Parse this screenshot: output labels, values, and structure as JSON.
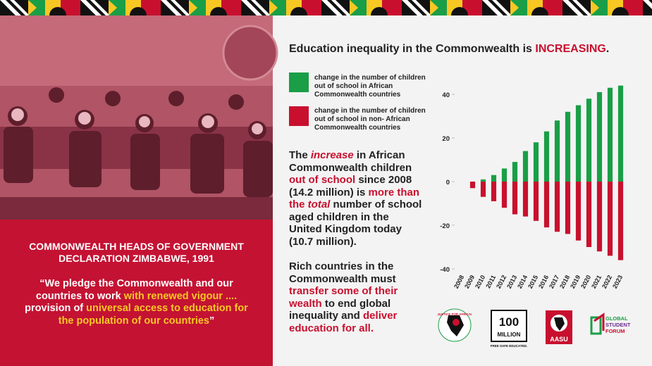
{
  "left_panel": {
    "heading": [
      "COMMONWEALTH HEADS OF GOVERNMENT",
      "DECLARATION ZIMBABWE, 1991"
    ],
    "quote": [
      {
        "text": "“We pledge the Commonwealth and our countries to work ",
        "color": "#ffffff"
      },
      {
        "text": "with renewed vigour ....",
        "color": "#f7c823"
      },
      {
        "text": " provision of ",
        "color": "#ffffff"
      },
      {
        "text": "universal access to education for the population of our countries",
        "color": "#f7c823"
      },
      {
        "text": "”",
        "color": "#ffffff"
      }
    ]
  },
  "headline": [
    {
      "text": "Education inequality in the Commonwealth is ",
      "color": "#222222"
    },
    {
      "text": "INCREASING",
      "color": "#c8102e"
    },
    {
      "text": ".",
      "color": "#222222"
    }
  ],
  "body": [
    [
      {
        "text": "The ",
        "color": "#222222"
      },
      {
        "text": "increase",
        "color": "#c8102e",
        "italic": true
      },
      {
        "text": " in African Commonwealth children ",
        "color": "#222222"
      },
      {
        "text": "out of school",
        "color": "#c8102e"
      },
      {
        "text": " since 2008 (14.2 million) is ",
        "color": "#222222"
      },
      {
        "text": "more than the ",
        "color": "#c8102e"
      },
      {
        "text": "total",
        "color": "#c8102e",
        "italic": true
      },
      {
        "text": " number of school aged children in the United Kingdom today (10.7 million).",
        "color": "#222222"
      }
    ],
    [
      {
        "text": "Rich countries in the Commonwealth must ",
        "color": "#222222"
      },
      {
        "text": "transfer some of their wealth",
        "color": "#c8102e"
      },
      {
        "text": " to end global inequality and ",
        "color": "#222222"
      },
      {
        "text": "deliver education for all.",
        "color": "#c8102e"
      }
    ]
  ],
  "chart_data": {
    "type": "bar",
    "categories": [
      "2008",
      "2009",
      "2010",
      "2011",
      "2012",
      "2013",
      "2014",
      "2015",
      "2016",
      "2017",
      "2018",
      "2019",
      "2020",
      "2021",
      "2022",
      "2023"
    ],
    "series": [
      {
        "name": "change in the number of children out of school in African Commonwealth countries",
        "color": "#1a9e47",
        "values": [
          0,
          0,
          1,
          3,
          6,
          9,
          14,
          18,
          23,
          28,
          32,
          35,
          38,
          41,
          43,
          44
        ]
      },
      {
        "name": "change in the number of children out of school in non- African Commonwealth countries",
        "color": "#c8102e",
        "values": [
          0,
          -3,
          -7,
          -9,
          -12,
          -15,
          -16,
          -18,
          -21,
          -23,
          -24,
          -27,
          -30,
          -32,
          -34,
          -36
        ]
      }
    ],
    "ylim": [
      -42,
      46
    ],
    "yticks": [
      -40,
      -20,
      0,
      20,
      40
    ]
  },
  "logos": {
    "justice": "JUSTICE FOR AFRICA!",
    "million_number": "100",
    "million_word": "MILLION",
    "million_tagline": "FREE SAFE EDUCATED.",
    "aasu": "AASU",
    "gsf": [
      "GLOBAL",
      "STUDENT",
      "FORUM"
    ]
  }
}
